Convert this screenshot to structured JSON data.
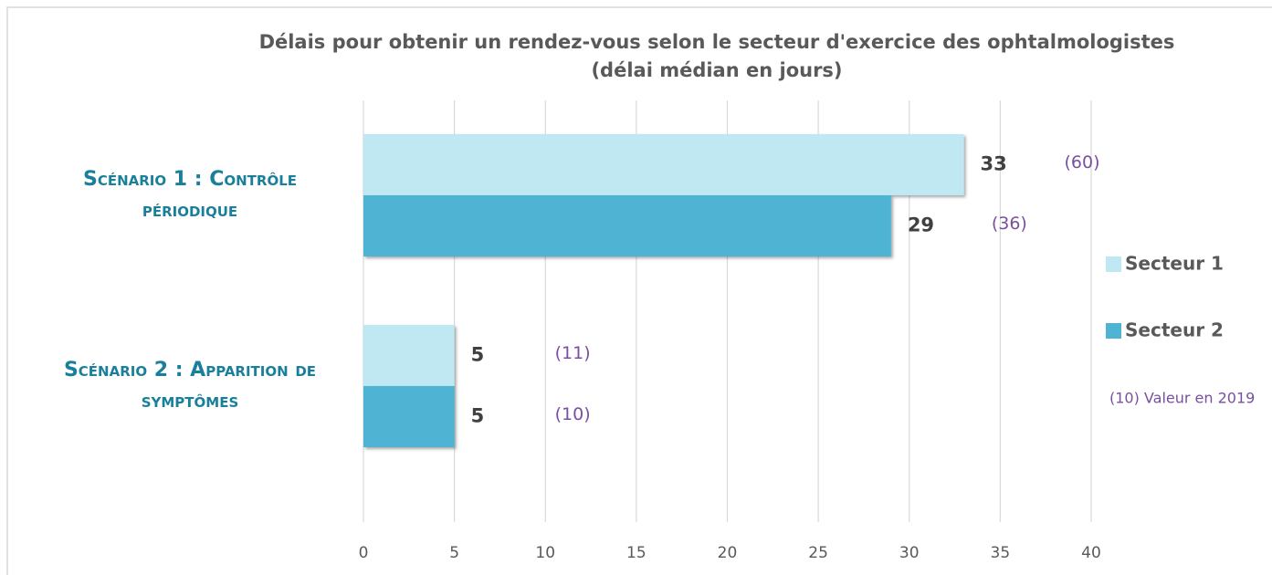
{
  "chart_data": {
    "type": "bar",
    "orientation": "horizontal",
    "title": "Délais pour obtenir un rendez-vous selon le secteur d'exercice des ophtalmologistes",
    "subtitle": "(délai médian en jours)",
    "categories": [
      "Scénario 1 : Contrôle périodique",
      "Scénario 2 : Apparition de symptômes"
    ],
    "series": [
      {
        "name": "Secteur 1",
        "color": "#bfe8f2",
        "values": [
          33,
          5
        ],
        "previous_labels": [
          "(60)",
          "(11)"
        ]
      },
      {
        "name": "Secteur 2",
        "color": "#4fb4d4",
        "values": [
          29,
          5
        ],
        "previous_labels": [
          "(36)",
          "(10)"
        ]
      }
    ],
    "annotation": "(10) Valeur en 2019",
    "xlim": [
      0,
      40
    ],
    "xticks": [
      0,
      5,
      10,
      15,
      20,
      25,
      30,
      35,
      40
    ],
    "grid": true,
    "legend": "right"
  }
}
